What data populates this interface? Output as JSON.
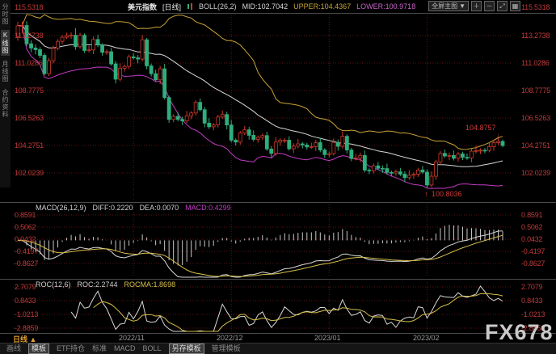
{
  "window": {
    "watermark": "FX678"
  },
  "sidebar": {
    "items": [
      {
        "label": "分时图",
        "active": false
      },
      {
        "label": "K线图",
        "active": true
      },
      {
        "label": "月线图",
        "active": false
      },
      {
        "label": "合约资料",
        "active": false
      }
    ]
  },
  "header": {
    "title": "美元指数",
    "period_tag": "[日线]",
    "boll_label": "BOLL(26,2)",
    "mid": "MID:102.7042",
    "upper": "UPPER:104.4367",
    "lower": "LOWER:100.9718",
    "controls": {
      "fullscreen_label": "全屏主图",
      "caret": "▼",
      "zoom_in": "＋",
      "zoom_out": "－",
      "expand": "⤢",
      "grid": "▦"
    }
  },
  "axes": {
    "main": [
      "115.5318",
      "113.2738",
      "111.0286",
      "108.7775",
      "106.5263",
      "104.2751",
      "102.0239"
    ],
    "macd": [
      "0.8591",
      "0.5062",
      "0.0432",
      "-0.4197",
      "-0.8627"
    ],
    "roc": [
      "2.7079",
      "0.8433",
      "-1.0213",
      "-2.8859"
    ]
  },
  "annotations": {
    "high": "104.8757",
    "low": "100.8036",
    "arrow_down": "↓",
    "arrow_up": "↑"
  },
  "macd_header": {
    "name": "MACD(26,12,9)",
    "diff": "DIFF:0.2220",
    "dea": "DEA:0.0070",
    "macd": "MACD:0.4299"
  },
  "roc_header": {
    "name": "ROC(12,6)",
    "roc": "ROC:2.2744",
    "rocma": "ROCMA:1.8698"
  },
  "xaxis": {
    "period_label": "日线",
    "caret": "▲",
    "months": [
      "2022/11",
      "2022/12",
      "2023/01",
      "2023/02"
    ]
  },
  "bottom_bar": {
    "tabs": [
      {
        "label": "画线",
        "active": false
      },
      {
        "label": "模板",
        "active": true
      },
      {
        "label": "ETF持仓",
        "active": false
      },
      {
        "label": "标准",
        "active": false
      },
      {
        "label": "MACD",
        "active": false
      },
      {
        "label": "BOLL",
        "active": false
      },
      {
        "label": "另存模板",
        "active": true
      },
      {
        "label": "管理模板",
        "active": false
      }
    ]
  },
  "colors": {
    "up": "#cf3a2a",
    "down": "#2fae7d",
    "boll_mid": "#d8d8d8",
    "boll_upper": "#c8a334",
    "boll_lower": "#c43cc4",
    "axis_text": "#c03a3a",
    "grid": "#571616",
    "divider": "#4a4a4a",
    "macd_bar": "#c8c8c8",
    "diff": "#d8d8d8",
    "dea": "#d6c04a",
    "roc": "#d8d8d8",
    "rocma": "#d6c04a",
    "accent_orange": "#e0a030"
  },
  "chart_data": {
    "type": "candlestick",
    "title": "美元指数 日线",
    "ylim": [
      100.5,
      115.5318
    ],
    "yticks": [
      115.5318,
      113.2738,
      111.0286,
      108.7775,
      106.5263,
      104.2751,
      102.0239
    ],
    "indicators": {
      "boll": {
        "period": 26,
        "k": 2,
        "mid": 102.7042,
        "upper": 104.4367,
        "lower": 100.9718
      },
      "macd": {
        "params": [
          26,
          12,
          9
        ],
        "diff": 0.222,
        "dea": 0.007,
        "macd": 0.4299,
        "yticks": [
          0.8591,
          0.5062,
          0.0432,
          -0.4197,
          -0.8627
        ]
      },
      "roc": {
        "params": [
          12,
          6
        ],
        "roc": 2.2744,
        "rocma": 1.8698,
        "yticks": [
          2.7079,
          0.8433,
          -1.0213,
          -2.8859
        ]
      }
    },
    "annotations": [
      {
        "type": "high",
        "value": 104.8757
      },
      {
        "type": "low",
        "value": 100.8036
      }
    ],
    "month_ticks": [
      {
        "index": 26,
        "label": "2022/11"
      },
      {
        "index": 48,
        "label": "2022/12"
      },
      {
        "index": 70,
        "label": "2023/01"
      },
      {
        "index": 92,
        "label": "2023/02"
      }
    ],
    "ohlc": [
      [
        113.19,
        114.4,
        112.85,
        114.08
      ],
      [
        114.08,
        114.42,
        113.48,
        114.1
      ],
      [
        114.1,
        114.45,
        112.4,
        112.6
      ],
      [
        112.6,
        112.88,
        111.9,
        112.25
      ],
      [
        112.25,
        112.56,
        111.73,
        112.12
      ],
      [
        112.12,
        112.32,
        111.42,
        111.65
      ],
      [
        111.65,
        111.83,
        110.05,
        110.15
      ],
      [
        110.15,
        111.45,
        109.96,
        111.21
      ],
      [
        111.21,
        112.44,
        111.0,
        112.24
      ],
      [
        112.24,
        112.98,
        112.06,
        112.8
      ],
      [
        112.8,
        113.32,
        112.58,
        113.14
      ],
      [
        113.14,
        113.51,
        112.99,
        113.25
      ],
      [
        113.25,
        113.54,
        113.0,
        113.3
      ],
      [
        113.3,
        113.88,
        112.1,
        112.36
      ],
      [
        112.36,
        113.5,
        112.2,
        113.3
      ],
      [
        113.3,
        113.45,
        111.85,
        112.05
      ],
      [
        112.05,
        112.42,
        111.9,
        112.1
      ],
      [
        112.1,
        113.19,
        111.75,
        112.95
      ],
      [
        112.95,
        113.35,
        112.32,
        112.5
      ],
      [
        112.5,
        112.65,
        111.62,
        111.9
      ],
      [
        111.9,
        112.13,
        111.68,
        111.95
      ],
      [
        111.95,
        112.27,
        110.8,
        110.95
      ],
      [
        110.95,
        111.19,
        109.35,
        109.7
      ],
      [
        109.7,
        111.0,
        109.52,
        110.6
      ],
      [
        110.6,
        110.9,
        110.32,
        110.75
      ],
      [
        110.75,
        111.71,
        110.53,
        111.53
      ],
      [
        111.53,
        111.85,
        111.3,
        111.45
      ],
      [
        111.45,
        111.69,
        111.0,
        111.35
      ],
      [
        111.35,
        113.33,
        111.17,
        112.93
      ],
      [
        112.93,
        113.08,
        110.51,
        110.79
      ],
      [
        110.79,
        110.97,
        109.93,
        110.15
      ],
      [
        110.15,
        110.47,
        109.5,
        109.65
      ],
      [
        109.65,
        110.79,
        109.3,
        110.55
      ],
      [
        110.55,
        110.95,
        108.02,
        108.2
      ],
      [
        108.2,
        108.35,
        106.12,
        106.4
      ],
      [
        106.4,
        106.83,
        106.18,
        106.65
      ],
      [
        106.65,
        106.97,
        106.25,
        106.4
      ],
      [
        106.4,
        106.64,
        105.93,
        106.28
      ],
      [
        106.28,
        107.1,
        106.1,
        106.7
      ],
      [
        106.7,
        107.08,
        106.42,
        106.93
      ],
      [
        106.93,
        107.98,
        106.71,
        107.8
      ],
      [
        107.8,
        108.12,
        107.05,
        107.2
      ],
      [
        107.2,
        107.44,
        105.75,
        106.1
      ],
      [
        106.1,
        106.5,
        105.62,
        105.8
      ],
      [
        105.8,
        106.11,
        105.52,
        105.96
      ],
      [
        105.96,
        106.78,
        105.74,
        106.6
      ],
      [
        106.6,
        107.12,
        106.45,
        106.8
      ],
      [
        106.8,
        107.04,
        105.6,
        105.95
      ],
      [
        105.95,
        106.35,
        104.52,
        104.7
      ],
      [
        104.7,
        104.85,
        104.27,
        104.55
      ],
      [
        104.55,
        105.46,
        104.33,
        105.28
      ],
      [
        105.28,
        105.87,
        105.13,
        105.55
      ],
      [
        105.55,
        105.79,
        104.75,
        105.1
      ],
      [
        105.1,
        105.5,
        104.59,
        104.77
      ],
      [
        104.77,
        105.08,
        104.49,
        104.93
      ],
      [
        104.93,
        105.26,
        104.71,
        105.08
      ],
      [
        105.08,
        105.4,
        103.83,
        103.98
      ],
      [
        103.98,
        104.22,
        103.27,
        103.62
      ],
      [
        103.62,
        104.95,
        103.44,
        104.55
      ],
      [
        104.55,
        104.85,
        104.27,
        104.7
      ],
      [
        104.7,
        104.88,
        104.48,
        104.7
      ],
      [
        104.7,
        105.02,
        103.85,
        104.0
      ],
      [
        104.0,
        104.45,
        103.65,
        104.21
      ],
      [
        104.21,
        104.8,
        104.03,
        104.4
      ],
      [
        104.4,
        104.55,
        104.03,
        104.31
      ],
      [
        104.31,
        104.49,
        103.93,
        104.15
      ],
      [
        104.15,
        104.5,
        104.0,
        104.18
      ],
      [
        104.18,
        104.74,
        103.83,
        104.5
      ],
      [
        104.5,
        104.9,
        103.72,
        103.9
      ],
      [
        103.9,
        104.05,
        103.24,
        103.52
      ],
      [
        103.52,
        103.78,
        103.3,
        103.6
      ],
      [
        103.6,
        104.84,
        103.45,
        104.52
      ],
      [
        104.52,
        104.76,
        103.85,
        104.2
      ],
      [
        104.2,
        105.42,
        104.02,
        105.02
      ],
      [
        105.02,
        105.17,
        103.62,
        103.9
      ],
      [
        103.9,
        104.08,
        102.98,
        103.2
      ],
      [
        103.2,
        103.57,
        103.05,
        103.25
      ],
      [
        103.25,
        103.69,
        102.9,
        103.45
      ],
      [
        103.45,
        103.85,
        102.07,
        102.25
      ],
      [
        102.25,
        102.4,
        101.92,
        102.2
      ],
      [
        102.2,
        102.78,
        101.98,
        102.6
      ],
      [
        102.6,
        102.92,
        102.25,
        102.4
      ],
      [
        102.4,
        102.64,
        102.03,
        102.38
      ],
      [
        102.38,
        102.78,
        101.88,
        102.06
      ],
      [
        102.06,
        102.21,
        101.73,
        102.01
      ],
      [
        102.01,
        102.29,
        101.79,
        102.11
      ],
      [
        102.11,
        102.43,
        101.77,
        101.92
      ],
      [
        101.92,
        102.16,
        101.28,
        101.63
      ],
      [
        101.63,
        102.23,
        101.45,
        101.83
      ],
      [
        101.83,
        102.07,
        101.55,
        101.92
      ],
      [
        101.92,
        102.44,
        101.7,
        102.26
      ],
      [
        102.26,
        102.58,
        101.94,
        102.09
      ],
      [
        102.09,
        102.33,
        100.8,
        101.03
      ],
      [
        101.03,
        102.15,
        100.85,
        101.75
      ],
      [
        101.75,
        103.07,
        101.47,
        102.92
      ],
      [
        102.92,
        103.8,
        102.7,
        103.62
      ],
      [
        103.62,
        103.94,
        103.26,
        103.41
      ],
      [
        103.41,
        103.69,
        103.06,
        103.45
      ],
      [
        103.45,
        103.85,
        103.04,
        103.22
      ],
      [
        103.22,
        103.73,
        102.94,
        103.58
      ],
      [
        103.58,
        103.76,
        103.08,
        103.3
      ],
      [
        103.3,
        103.62,
        103.09,
        103.24
      ],
      [
        103.24,
        104.04,
        102.89,
        103.8
      ],
      [
        103.8,
        104.25,
        103.62,
        103.85
      ],
      [
        103.85,
        104.03,
        103.57,
        103.88
      ],
      [
        103.88,
        104.06,
        103.64,
        103.86
      ],
      [
        103.86,
        104.5,
        103.71,
        104.18
      ],
      [
        104.18,
        104.74,
        103.83,
        104.5
      ],
      [
        104.5,
        104.88,
        104.32,
        104.6
      ],
      [
        104.6,
        104.75,
        104.12,
        104.27
      ]
    ]
  }
}
